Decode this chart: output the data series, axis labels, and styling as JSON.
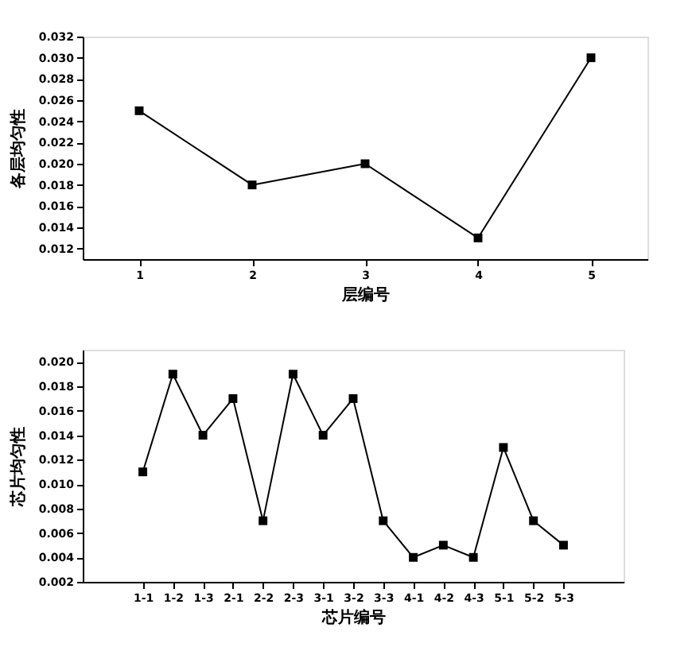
{
  "chart_data": [
    {
      "type": "line",
      "xlabel": "层编号",
      "ylabel": "各层均匀性",
      "x": [
        1,
        2,
        3,
        4,
        5
      ],
      "series": [
        {
          "color": "#000000",
          "values": [
            0.025,
            0.018,
            0.02,
            0.013,
            0.03
          ]
        }
      ],
      "xlim": [
        0.5,
        5.5
      ],
      "xticks": [
        1,
        2,
        3,
        4,
        5
      ],
      "ylim": [
        0.011,
        0.032
      ],
      "yticks": [
        0.012,
        0.014,
        0.016,
        0.018,
        {
          "value": 0.02,
          "label": "0.020"
        },
        0.022,
        0.024,
        0.026,
        0.028,
        {
          "value": 0.03,
          "label": "0.030"
        },
        0.032
      ],
      "marker": "square",
      "line_style": "solid",
      "grid": false
    },
    {
      "type": "line",
      "xlabel": "芯片编号",
      "ylabel": "芯片均匀性",
      "categories": [
        "1-1",
        "1-2",
        "1-3",
        "2-1",
        "2-2",
        "2-3",
        "3-1",
        "3-2",
        "3-3",
        "4-1",
        "4-2",
        "4-3",
        "5-1",
        "5-2",
        "5-3"
      ],
      "series": [
        {
          "color": "#000000",
          "values": [
            0.011,
            0.019,
            0.014,
            0.017,
            0.007,
            0.019,
            0.014,
            0.017,
            0.007,
            0.004,
            0.005,
            0.004,
            0.013,
            0.007,
            0.005
          ]
        }
      ],
      "ylim": [
        0.002,
        0.021
      ],
      "yticks": [
        0.002,
        0.004,
        0.006,
        0.008,
        {
          "value": 0.01,
          "label": "0.010"
        },
        0.012,
        0.014,
        0.016,
        0.018,
        {
          "value": 0.02,
          "label": "0.020"
        }
      ],
      "marker": "square",
      "line_style": "solid",
      "grid": false
    }
  ]
}
